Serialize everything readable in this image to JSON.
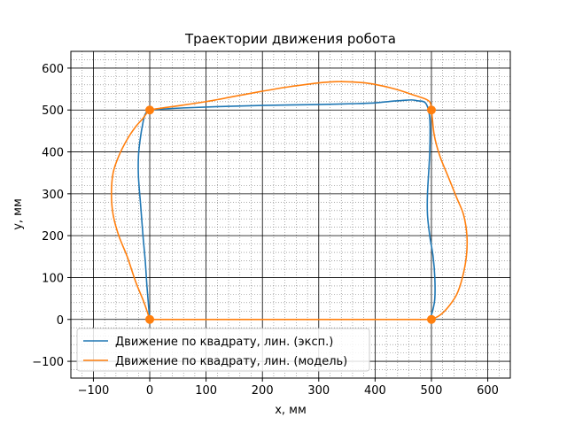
{
  "chart_data": {
    "type": "line",
    "title": "Траектории движения робота",
    "xlabel": "x, мм",
    "ylabel": "y, мм",
    "xlim": [
      -140,
      640
    ],
    "ylim": [
      -140,
      640
    ],
    "xticks": [
      -100,
      0,
      100,
      200,
      300,
      400,
      500,
      600
    ],
    "yticks": [
      -100,
      0,
      100,
      200,
      300,
      400,
      500,
      600
    ],
    "tick_labels_x": [
      "−100",
      "0",
      "100",
      "200",
      "300",
      "400",
      "500",
      "600"
    ],
    "tick_labels_y": [
      "−100",
      "0",
      "100",
      "200",
      "300",
      "400",
      "500",
      "600"
    ],
    "minor_step": 20,
    "grid": true,
    "legend_position": "lower-left",
    "series": [
      {
        "name": "Движение по квадрату, лин. (эксп.)",
        "color": "#1f77b4",
        "x": [
          0,
          -2,
          -5,
          -8,
          -12,
          -16,
          -20,
          -20,
          -17,
          -12,
          -8,
          0,
          20,
          60,
          120,
          200,
          300,
          360,
          400,
          430,
          450,
          465,
          475,
          490,
          497,
          497,
          493,
          493,
          497,
          503,
          506,
          506,
          502,
          497
        ],
        "y": [
          0,
          30,
          80,
          140,
          200,
          270,
          340,
          390,
          430,
          470,
          490,
          500,
          502,
          505,
          508,
          511,
          513,
          515,
          517,
          521,
          523,
          524,
          522,
          516,
          480,
          400,
          300,
          250,
          200,
          150,
          100,
          50,
          20,
          0
        ]
      },
      {
        "name": "Движение по квадрату, лин. (модель)",
        "color": "#ff7f0e",
        "x": [
          0,
          -10,
          -25,
          -40,
          -55,
          -65,
          -68,
          -65,
          -55,
          -40,
          -25,
          -12,
          -5,
          0,
          40,
          100,
          180,
          250,
          320,
          380,
          430,
          470,
          495,
          500,
          505,
          515,
          530,
          545,
          557,
          563,
          562,
          555,
          545,
          530,
          515,
          500,
          495,
          480,
          400,
          300,
          200,
          100,
          50,
          0
        ],
        "y": [
          0,
          40,
          90,
          150,
          200,
          250,
          300,
          350,
          390,
          430,
          460,
          480,
          493,
          500,
          508,
          520,
          540,
          556,
          567,
          565,
          552,
          535,
          522,
          500,
          440,
          390,
          340,
          290,
          250,
          200,
          150,
          100,
          60,
          30,
          10,
          0,
          0,
          0,
          0,
          0,
          0,
          0,
          0,
          0
        ]
      }
    ],
    "markers": {
      "color": "#ff7f0e",
      "points": [
        [
          0,
          0
        ],
        [
          500,
          0
        ],
        [
          500,
          500
        ],
        [
          0,
          500
        ]
      ]
    }
  }
}
